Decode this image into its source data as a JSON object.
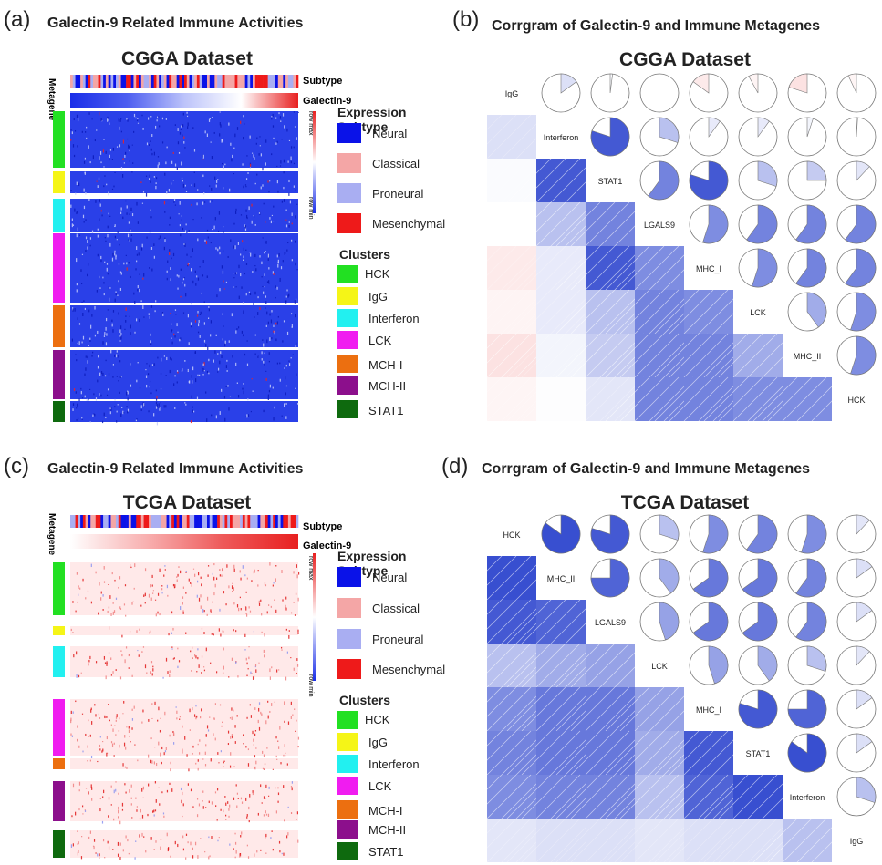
{
  "panels": [
    {
      "letter": "(a)",
      "title": "Galectin-9 Related Immune Activities",
      "dataset": "CGGA Dataset"
    },
    {
      "letter": "(b)",
      "title": "Corrgram of Galectin-9 and Immune Metagenes",
      "dataset": "CGGA Dataset"
    },
    {
      "letter": "(c)",
      "title": "Galectin-9 Related Immune Activities",
      "dataset": "TCGA Dataset"
    },
    {
      "letter": "(d)",
      "title": "Corrgram of Galectin-9 and Immune Metagenes",
      "dataset": "TCGA Dataset"
    }
  ],
  "heatmap": {
    "metagene_label": "Metagene",
    "subtype_label": "Subtype",
    "galectin_label": "Galectin-9",
    "row_max": "row max",
    "row_min": "row min"
  },
  "legend": {
    "expression_title": "Expression Subtype",
    "subtypes": [
      {
        "name": "Neural",
        "color": "#0a12e8"
      },
      {
        "name": "Classical",
        "color": "#f4a6a6"
      },
      {
        "name": "Proneural",
        "color": "#a9aef2"
      },
      {
        "name": "Mesenchymal",
        "color": "#ee1a1a"
      }
    ],
    "clusters_title": "Clusters",
    "clusters": [
      {
        "name": "HCK",
        "color": "#22e022"
      },
      {
        "name": "IgG",
        "color": "#f5f517"
      },
      {
        "name": "Interferon",
        "color": "#22f0f0"
      },
      {
        "name": "LCK",
        "color": "#f01cf0"
      },
      {
        "name": "MCH-I",
        "color": "#ec6f10"
      },
      {
        "name": "MCH-II",
        "color": "#8c0f8c"
      },
      {
        "name": "STAT1",
        "color": "#0e6a0e"
      }
    ]
  },
  "colors": {
    "positive": "#1530c8",
    "negative": "#f07070",
    "heat_blue": "#1a2ee8",
    "heat_red": "#e82020"
  },
  "chart_data": [
    {
      "type": "heatmap",
      "panel": "(a)",
      "title": "CGGA Dataset",
      "rows": [
        "HCK",
        "IgG",
        "Interferon",
        "LCK",
        "MCH-I",
        "MCH-II",
        "STAT1"
      ],
      "sorted_by": "Galectin-9",
      "scale": "row min to row max",
      "dominant_color": "blue"
    },
    {
      "type": "corrgram",
      "panel": "(b)",
      "title": "CGGA Dataset",
      "variables": [
        "IgG",
        "Interferon",
        "STAT1",
        "LGALS9",
        "MHC_I",
        "LCK",
        "MHC_II",
        "HCK"
      ],
      "upper": "pie",
      "lower": "shade",
      "correlation_matrix": [
        [
          1.0,
          0.15,
          0.02,
          0.0,
          -0.15,
          -0.08,
          -0.2,
          -0.07
        ],
        [
          0.15,
          1.0,
          0.8,
          0.3,
          0.1,
          0.1,
          0.05,
          0.01
        ],
        [
          0.02,
          0.8,
          1.0,
          0.6,
          0.8,
          0.3,
          0.25,
          0.12
        ],
        [
          0.0,
          0.3,
          0.6,
          1.0,
          0.55,
          0.6,
          0.6,
          0.6
        ],
        [
          -0.15,
          0.1,
          0.8,
          0.55,
          1.0,
          0.55,
          0.6,
          0.6
        ],
        [
          -0.08,
          0.1,
          0.3,
          0.6,
          0.55,
          1.0,
          0.4,
          0.55
        ],
        [
          -0.2,
          0.05,
          0.25,
          0.6,
          0.6,
          0.4,
          1.0,
          0.55
        ],
        [
          -0.07,
          0.01,
          0.12,
          0.6,
          0.6,
          0.55,
          0.55,
          1.0
        ]
      ]
    },
    {
      "type": "heatmap",
      "panel": "(c)",
      "title": "TCGA Dataset",
      "rows": [
        "HCK",
        "IgG",
        "Interferon",
        "LCK",
        "MCH-I",
        "MCH-II",
        "STAT1"
      ],
      "sorted_by": "Galectin-9",
      "scale": "row min to row max",
      "dominant_color": "red"
    },
    {
      "type": "corrgram",
      "panel": "(d)",
      "title": "TCGA Dataset",
      "variables": [
        "HCK",
        "MHC_II",
        "LGALS9",
        "LCK",
        "MHC_I",
        "STAT1",
        "Interferon",
        "IgG"
      ],
      "upper": "pie",
      "lower": "shade",
      "correlation_matrix": [
        [
          1.0,
          0.85,
          0.8,
          0.3,
          0.55,
          0.6,
          0.55,
          0.12
        ],
        [
          0.85,
          1.0,
          0.75,
          0.4,
          0.65,
          0.65,
          0.6,
          0.15
        ],
        [
          0.8,
          0.75,
          1.0,
          0.45,
          0.65,
          0.65,
          0.6,
          0.15
        ],
        [
          0.3,
          0.4,
          0.45,
          1.0,
          0.45,
          0.4,
          0.3,
          0.12
        ],
        [
          0.55,
          0.65,
          0.65,
          0.45,
          1.0,
          0.8,
          0.75,
          0.15
        ],
        [
          0.6,
          0.65,
          0.65,
          0.4,
          0.8,
          1.0,
          0.85,
          0.15
        ],
        [
          0.55,
          0.6,
          0.6,
          0.3,
          0.75,
          0.85,
          1.0,
          0.3
        ],
        [
          0.12,
          0.15,
          0.15,
          0.12,
          0.15,
          0.15,
          0.3,
          1.0
        ]
      ]
    }
  ]
}
